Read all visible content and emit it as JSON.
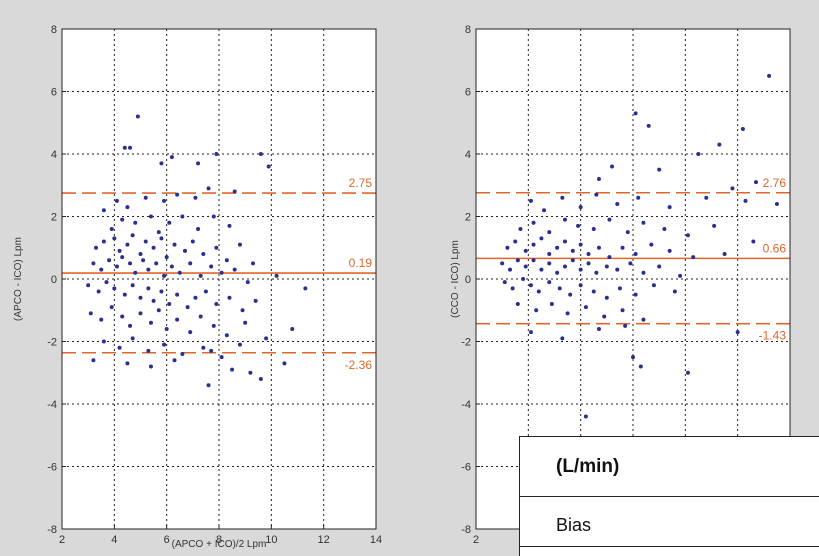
{
  "chart_data": [
    {
      "type": "scatter",
      "xlabel": "(APCO + ICO)/2 Lpm",
      "ylabel": "(APCO - ICO) Lpm",
      "xlim": [
        2,
        14
      ],
      "ylim": [
        -8,
        8
      ],
      "xticks": [
        "2",
        "4",
        "6",
        "8",
        "10",
        "12",
        "14"
      ],
      "yticks": [
        "-8",
        "-6",
        "-4",
        "-2",
        "0",
        "2",
        "4",
        "6",
        "8"
      ],
      "grid": true,
      "point_color": "#2b2f8f",
      "reference_lines": [
        {
          "label": "2.75",
          "value": 2.75,
          "style": "dashed",
          "color": "#e0662c"
        },
        {
          "label": "0.19",
          "value": 0.19,
          "style": "solid",
          "color": "#e0662c"
        },
        {
          "label": "-2.36",
          "value": -2.36,
          "style": "dashed",
          "color": "#e0662c"
        }
      ],
      "points": [
        [
          4.4,
          4.2
        ],
        [
          4.6,
          4.2
        ],
        [
          4.9,
          5.2
        ],
        [
          6.2,
          3.9
        ],
        [
          5.8,
          3.7
        ],
        [
          7.9,
          4.0
        ],
        [
          9.6,
          4.0
        ],
        [
          9.9,
          3.6
        ],
        [
          7.2,
          3.7
        ],
        [
          4.1,
          2.5
        ],
        [
          4.5,
          2.3
        ],
        [
          5.2,
          2.6
        ],
        [
          5.9,
          2.5
        ],
        [
          6.4,
          2.7
        ],
        [
          7.1,
          2.6
        ],
        [
          7.6,
          2.9
        ],
        [
          8.6,
          2.8
        ],
        [
          3.6,
          2.2
        ],
        [
          3.9,
          1.6
        ],
        [
          4.3,
          1.9
        ],
        [
          4.8,
          1.8
        ],
        [
          5.4,
          2.0
        ],
        [
          5.7,
          1.5
        ],
        [
          6.1,
          1.8
        ],
        [
          6.6,
          2.0
        ],
        [
          7.2,
          1.6
        ],
        [
          7.8,
          2.0
        ],
        [
          8.4,
          1.7
        ],
        [
          3.3,
          1.0
        ],
        [
          3.6,
          1.2
        ],
        [
          4.0,
          1.3
        ],
        [
          4.2,
          0.9
        ],
        [
          4.5,
          1.1
        ],
        [
          4.7,
          1.4
        ],
        [
          5.0,
          0.8
        ],
        [
          5.2,
          1.2
        ],
        [
          5.5,
          1.0
        ],
        [
          5.8,
          1.3
        ],
        [
          6.0,
          0.7
        ],
        [
          6.3,
          1.1
        ],
        [
          6.7,
          0.9
        ],
        [
          7.0,
          1.2
        ],
        [
          7.4,
          0.8
        ],
        [
          7.9,
          1.0
        ],
        [
          8.3,
          0.6
        ],
        [
          8.8,
          1.1
        ],
        [
          9.3,
          0.5
        ],
        [
          3.2,
          0.5
        ],
        [
          3.5,
          0.3
        ],
        [
          3.8,
          0.6
        ],
        [
          4.1,
          0.4
        ],
        [
          4.3,
          0.7
        ],
        [
          4.6,
          0.5
        ],
        [
          4.8,
          0.2
        ],
        [
          5.1,
          0.6
        ],
        [
          5.3,
          0.3
        ],
        [
          5.6,
          0.5
        ],
        [
          5.9,
          0.1
        ],
        [
          6.2,
          0.4
        ],
        [
          6.5,
          0.2
        ],
        [
          6.9,
          0.5
        ],
        [
          7.3,
          0.1
        ],
        [
          7.7,
          0.4
        ],
        [
          8.1,
          0.2
        ],
        [
          8.6,
          0.3
        ],
        [
          9.1,
          -0.1
        ],
        [
          10.2,
          0.1
        ],
        [
          3.0,
          -0.2
        ],
        [
          3.4,
          -0.4
        ],
        [
          3.7,
          -0.1
        ],
        [
          4.0,
          -0.3
        ],
        [
          4.4,
          -0.5
        ],
        [
          4.7,
          -0.2
        ],
        [
          5.0,
          -0.6
        ],
        [
          5.3,
          -0.3
        ],
        [
          5.5,
          -0.7
        ],
        [
          5.8,
          -0.4
        ],
        [
          6.1,
          -0.8
        ],
        [
          6.4,
          -0.5
        ],
        [
          6.8,
          -0.9
        ],
        [
          7.1,
          -0.6
        ],
        [
          7.5,
          -0.4
        ],
        [
          7.9,
          -0.8
        ],
        [
          8.4,
          -0.6
        ],
        [
          8.9,
          -1.0
        ],
        [
          9.4,
          -0.7
        ],
        [
          3.1,
          -1.1
        ],
        [
          3.5,
          -1.3
        ],
        [
          3.9,
          -0.9
        ],
        [
          4.3,
          -1.2
        ],
        [
          4.6,
          -1.5
        ],
        [
          5.0,
          -1.1
        ],
        [
          5.4,
          -1.4
        ],
        [
          5.7,
          -1.0
        ],
        [
          6.0,
          -1.6
        ],
        [
          6.4,
          -1.3
        ],
        [
          6.9,
          -1.7
        ],
        [
          7.3,
          -1.2
        ],
        [
          7.8,
          -1.5
        ],
        [
          8.3,
          -1.8
        ],
        [
          9.0,
          -1.4
        ],
        [
          9.8,
          -1.9
        ],
        [
          3.6,
          -2.0
        ],
        [
          4.2,
          -2.2
        ],
        [
          4.7,
          -1.9
        ],
        [
          5.3,
          -2.3
        ],
        [
          5.9,
          -2.1
        ],
        [
          6.6,
          -2.4
        ],
        [
          7.4,
          -2.2
        ],
        [
          8.1,
          -2.5
        ],
        [
          8.8,
          -2.1
        ],
        [
          10.8,
          -1.6
        ],
        [
          11.3,
          -0.3
        ],
        [
          3.2,
          -2.6
        ],
        [
          4.5,
          -2.7
        ],
        [
          5.4,
          -2.8
        ],
        [
          6.3,
          -2.6
        ],
        [
          7.7,
          -2.3
        ],
        [
          8.5,
          -2.9
        ],
        [
          9.2,
          -3.0
        ],
        [
          9.6,
          -3.2
        ],
        [
          10.5,
          -2.7
        ],
        [
          7.6,
          -3.4
        ]
      ]
    },
    {
      "type": "scatter",
      "xlabel": "",
      "ylabel": "(CCO - ICO) Lpm",
      "xlim": [
        2,
        14
      ],
      "ylim": [
        -8,
        8
      ],
      "xticks": [
        "2"
      ],
      "yticks": [
        "-8",
        "-6",
        "-4",
        "-2",
        "0",
        "2",
        "4",
        "6",
        "8"
      ],
      "grid": true,
      "point_color": "#2b2f8f",
      "reference_lines": [
        {
          "label": "2.76",
          "value": 2.76,
          "style": "dashed",
          "color": "#e0662c"
        },
        {
          "label": "0.66",
          "value": 0.66,
          "style": "solid",
          "color": "#e0662c"
        },
        {
          "label": "-1.43",
          "value": -1.43,
          "style": "dashed",
          "color": "#e0662c"
        }
      ],
      "points": [
        [
          13.2,
          6.5
        ],
        [
          12.2,
          4.8
        ],
        [
          8.1,
          5.3
        ],
        [
          8.6,
          4.9
        ],
        [
          9.0,
          3.5
        ],
        [
          10.5,
          4.0
        ],
        [
          11.3,
          4.3
        ],
        [
          12.7,
          3.1
        ],
        [
          7.2,
          3.6
        ],
        [
          6.7,
          3.2
        ],
        [
          4.1,
          2.5
        ],
        [
          4.6,
          2.2
        ],
        [
          5.3,
          2.6
        ],
        [
          6.0,
          2.3
        ],
        [
          6.6,
          2.7
        ],
        [
          7.4,
          2.4
        ],
        [
          8.2,
          2.6
        ],
        [
          9.4,
          2.3
        ],
        [
          10.8,
          2.6
        ],
        [
          12.3,
          2.5
        ],
        [
          13.5,
          2.4
        ],
        [
          11.8,
          2.9
        ],
        [
          3.7,
          1.6
        ],
        [
          4.2,
          1.8
        ],
        [
          4.8,
          1.5
        ],
        [
          5.4,
          1.9
        ],
        [
          5.9,
          1.7
        ],
        [
          6.5,
          1.6
        ],
        [
          7.1,
          1.9
        ],
        [
          7.8,
          1.5
        ],
        [
          8.4,
          1.8
        ],
        [
          9.2,
          1.6
        ],
        [
          10.1,
          1.4
        ],
        [
          11.1,
          1.7
        ],
        [
          12.6,
          1.2
        ],
        [
          3.2,
          1.0
        ],
        [
          3.5,
          1.2
        ],
        [
          3.9,
          0.9
        ],
        [
          4.2,
          1.1
        ],
        [
          4.5,
          1.3
        ],
        [
          4.8,
          0.8
        ],
        [
          5.1,
          1.0
        ],
        [
          5.4,
          1.2
        ],
        [
          5.7,
          0.9
        ],
        [
          6.0,
          1.1
        ],
        [
          6.3,
          0.8
        ],
        [
          6.7,
          1.0
        ],
        [
          7.1,
          0.7
        ],
        [
          7.6,
          1.0
        ],
        [
          8.1,
          0.8
        ],
        [
          8.7,
          1.1
        ],
        [
          9.4,
          0.9
        ],
        [
          10.3,
          0.7
        ],
        [
          11.5,
          0.8
        ],
        [
          3.0,
          0.5
        ],
        [
          3.3,
          0.3
        ],
        [
          3.6,
          0.6
        ],
        [
          3.9,
          0.4
        ],
        [
          4.2,
          0.6
        ],
        [
          4.5,
          0.3
        ],
        [
          4.8,
          0.5
        ],
        [
          5.1,
          0.2
        ],
        [
          5.4,
          0.4
        ],
        [
          5.7,
          0.6
        ],
        [
          6.0,
          0.3
        ],
        [
          6.3,
          0.5
        ],
        [
          6.6,
          0.2
        ],
        [
          7.0,
          0.4
        ],
        [
          7.4,
          0.3
        ],
        [
          7.9,
          0.5
        ],
        [
          8.4,
          0.2
        ],
        [
          9.0,
          0.4
        ],
        [
          9.8,
          0.1
        ],
        [
          3.1,
          -0.1
        ],
        [
          3.4,
          -0.3
        ],
        [
          3.8,
          0.0
        ],
        [
          4.1,
          -0.2
        ],
        [
          4.4,
          -0.4
        ],
        [
          4.8,
          -0.1
        ],
        [
          5.2,
          -0.3
        ],
        [
          5.6,
          -0.5
        ],
        [
          6.0,
          -0.2
        ],
        [
          6.5,
          -0.4
        ],
        [
          7.0,
          -0.6
        ],
        [
          7.5,
          -0.3
        ],
        [
          8.1,
          -0.5
        ],
        [
          8.8,
          -0.2
        ],
        [
          9.6,
          -0.4
        ],
        [
          3.6,
          -0.8
        ],
        [
          4.3,
          -1.0
        ],
        [
          4.9,
          -0.8
        ],
        [
          5.5,
          -1.1
        ],
        [
          6.2,
          -0.9
        ],
        [
          6.9,
          -1.2
        ],
        [
          7.6,
          -1.0
        ],
        [
          8.4,
          -1.3
        ],
        [
          4.1,
          -1.7
        ],
        [
          5.3,
          -1.9
        ],
        [
          6.7,
          -1.6
        ],
        [
          7.7,
          -1.5
        ],
        [
          12.0,
          -1.7
        ],
        [
          10.1,
          -3.0
        ],
        [
          8.0,
          -2.5
        ],
        [
          8.3,
          -2.8
        ],
        [
          6.2,
          -4.4
        ]
      ]
    }
  ],
  "table": {
    "header": "(L/min)",
    "rows": [
      "Bias"
    ]
  }
}
